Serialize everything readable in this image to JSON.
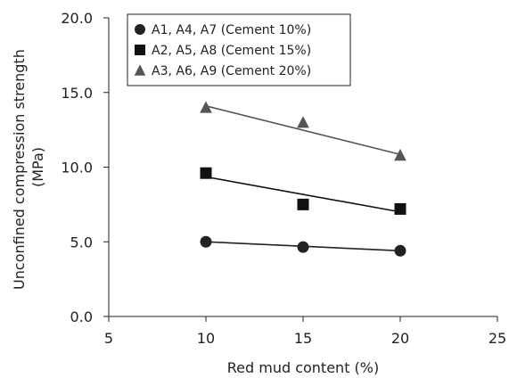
{
  "chart_data": {
    "type": "scatter",
    "title": "",
    "xlabel": "Red mud content (%)",
    "ylabel_lines": [
      "Unconfined compression strength",
      "(MPa)"
    ],
    "xlim": [
      5,
      25
    ],
    "ylim": [
      0,
      20
    ],
    "xticks": [
      5,
      10,
      15,
      20,
      25
    ],
    "xtick_labels": [
      "5",
      "10",
      "15",
      "20",
      "25"
    ],
    "yticks": [
      0,
      5,
      10,
      15,
      20
    ],
    "ytick_labels": [
      "0.0",
      "5.0",
      "10.0",
      "15.0",
      "20.0"
    ],
    "grid": false,
    "legend_position": "top-left",
    "series": [
      {
        "name": "A1, A4, A7 (Cement 10%)",
        "marker": "circle",
        "color": "#222222",
        "x": [
          10,
          15,
          20
        ],
        "y": [
          5.0,
          4.65,
          4.4
        ],
        "trend": [
          [
            10,
            5.0
          ],
          [
            20,
            4.4
          ]
        ]
      },
      {
        "name": "A2, A5, A8 (Cement 15%)",
        "marker": "square",
        "color": "#111111",
        "x": [
          10,
          15,
          20
        ],
        "y": [
          9.6,
          7.5,
          7.2
        ],
        "trend": [
          [
            10,
            9.35
          ],
          [
            20,
            7.0
          ]
        ]
      },
      {
        "name": "A3, A6, A9 (Cement 20%)",
        "marker": "triangle",
        "color": "#555555",
        "x": [
          10,
          15,
          20
        ],
        "y": [
          14.0,
          13.0,
          10.8
        ],
        "trend": [
          [
            10,
            14.1
          ],
          [
            20,
            10.85
          ]
        ]
      }
    ]
  }
}
